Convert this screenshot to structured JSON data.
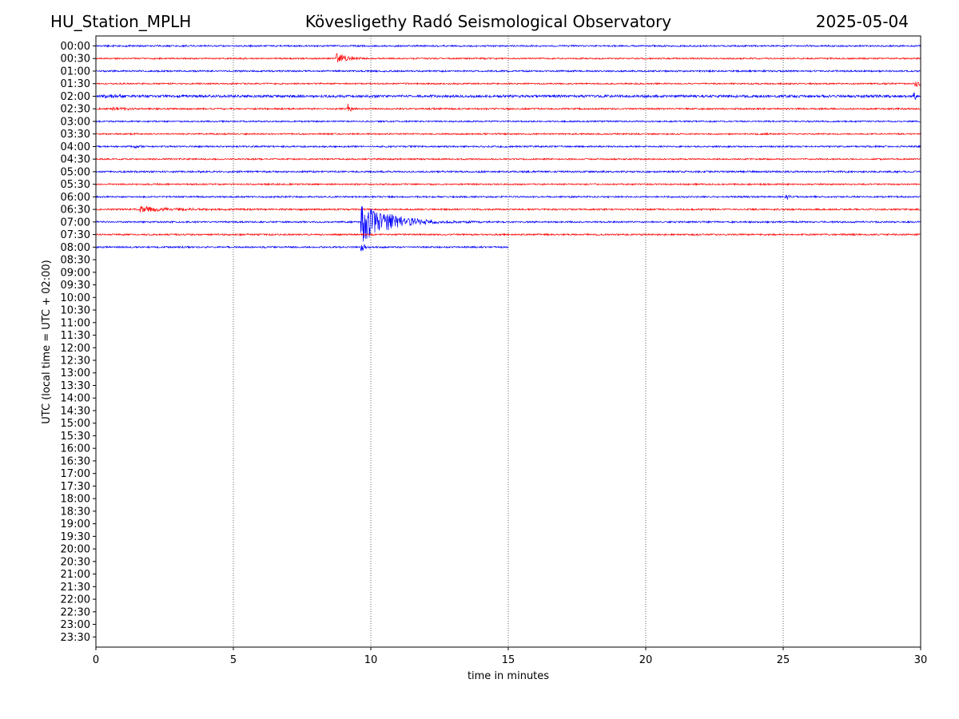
{
  "header": {
    "station": "HU_Station_MPLH",
    "observatory": "Kövesligethy Radó Seismological Observatory",
    "date": "2025-05-04"
  },
  "chart_data": {
    "type": "line",
    "title": "Kövesligethy Radó Seismological Observatory",
    "xlabel": "time in minutes",
    "ylabel": "UTC (local time = UTC + 02:00)",
    "xlim": [
      0,
      30
    ],
    "x_ticks": [
      0,
      5,
      10,
      15,
      20,
      25,
      30
    ],
    "vertical_gridlines": [
      5,
      10,
      15,
      20,
      25
    ],
    "grid_style": "dotted",
    "row_labels": [
      "00:00",
      "00:30",
      "01:00",
      "01:30",
      "02:00",
      "02:30",
      "03:00",
      "03:30",
      "04:00",
      "04:30",
      "05:00",
      "05:30",
      "06:00",
      "06:30",
      "07:00",
      "07:30",
      "08:00",
      "08:30",
      "09:00",
      "09:30",
      "10:00",
      "10:30",
      "11:00",
      "11:30",
      "12:00",
      "12:30",
      "13:00",
      "13:30",
      "14:00",
      "14:30",
      "15:00",
      "15:30",
      "16:00",
      "16:30",
      "17:00",
      "17:30",
      "18:00",
      "18:30",
      "19:00",
      "19:30",
      "20:00",
      "20:30",
      "21:00",
      "21:30",
      "22:00",
      "22:30",
      "23:00",
      "23:30"
    ],
    "colors": {
      "even_rows": "#0000ff",
      "odd_rows": "#ff0000"
    },
    "traces": [
      {
        "row": "00:00",
        "color": "#0000ff",
        "end_minute": 30,
        "noise": 1.0,
        "events": []
      },
      {
        "row": "00:30",
        "color": "#ff0000",
        "end_minute": 30,
        "noise": 0.9,
        "events": [
          {
            "t": 8.75,
            "amp": 9,
            "decay": 0.35
          }
        ]
      },
      {
        "row": "01:00",
        "color": "#0000ff",
        "end_minute": 30,
        "noise": 1.0,
        "events": []
      },
      {
        "row": "01:30",
        "color": "#ff0000",
        "end_minute": 30,
        "noise": 0.9,
        "events": [
          {
            "t": 29.8,
            "amp": 5,
            "decay": 0.15
          }
        ]
      },
      {
        "row": "02:00",
        "color": "#0000ff",
        "end_minute": 30,
        "noise": 1.6,
        "events": [
          {
            "t": 0.3,
            "amp": 2.5,
            "decay": 0.6
          },
          {
            "t": 29.75,
            "amp": 6,
            "decay": 0.15
          }
        ]
      },
      {
        "row": "02:30",
        "color": "#ff0000",
        "end_minute": 30,
        "noise": 1.0,
        "events": [
          {
            "t": 0.6,
            "amp": 3,
            "decay": 0.5
          },
          {
            "t": 9.15,
            "amp": 7,
            "decay": 0.12
          }
        ]
      },
      {
        "row": "03:00",
        "color": "#0000ff",
        "end_minute": 30,
        "noise": 0.9,
        "events": []
      },
      {
        "row": "03:30",
        "color": "#ff0000",
        "end_minute": 30,
        "noise": 0.9,
        "events": []
      },
      {
        "row": "04:00",
        "color": "#0000ff",
        "end_minute": 30,
        "noise": 1.0,
        "events": [
          {
            "t": 1.2,
            "amp": 2,
            "decay": 0.4
          }
        ]
      },
      {
        "row": "04:30",
        "color": "#ff0000",
        "end_minute": 30,
        "noise": 0.9,
        "events": []
      },
      {
        "row": "05:00",
        "color": "#0000ff",
        "end_minute": 30,
        "noise": 1.1,
        "events": []
      },
      {
        "row": "05:30",
        "color": "#ff0000",
        "end_minute": 30,
        "noise": 0.9,
        "events": []
      },
      {
        "row": "06:00",
        "color": "#0000ff",
        "end_minute": 30,
        "noise": 1.0,
        "events": [
          {
            "t": 25.1,
            "amp": 4,
            "decay": 0.15
          }
        ]
      },
      {
        "row": "06:30",
        "color": "#ff0000",
        "end_minute": 30,
        "noise": 1.0,
        "events": [
          {
            "t": 1.6,
            "amp": 3.5,
            "decay": 1.4
          }
        ]
      },
      {
        "row": "07:00",
        "color": "#0000ff",
        "end_minute": 30,
        "noise": 1.0,
        "events": [
          {
            "t": 9.65,
            "amp": 26,
            "decay": 1.1
          }
        ]
      },
      {
        "row": "07:30",
        "color": "#ff0000",
        "end_minute": 30,
        "noise": 1.0,
        "events": []
      },
      {
        "row": "08:00",
        "color": "#0000ff",
        "end_minute": 15,
        "noise": 1.0,
        "events": [
          {
            "t": 9.65,
            "amp": 12,
            "decay": 0.1
          }
        ]
      }
    ]
  }
}
